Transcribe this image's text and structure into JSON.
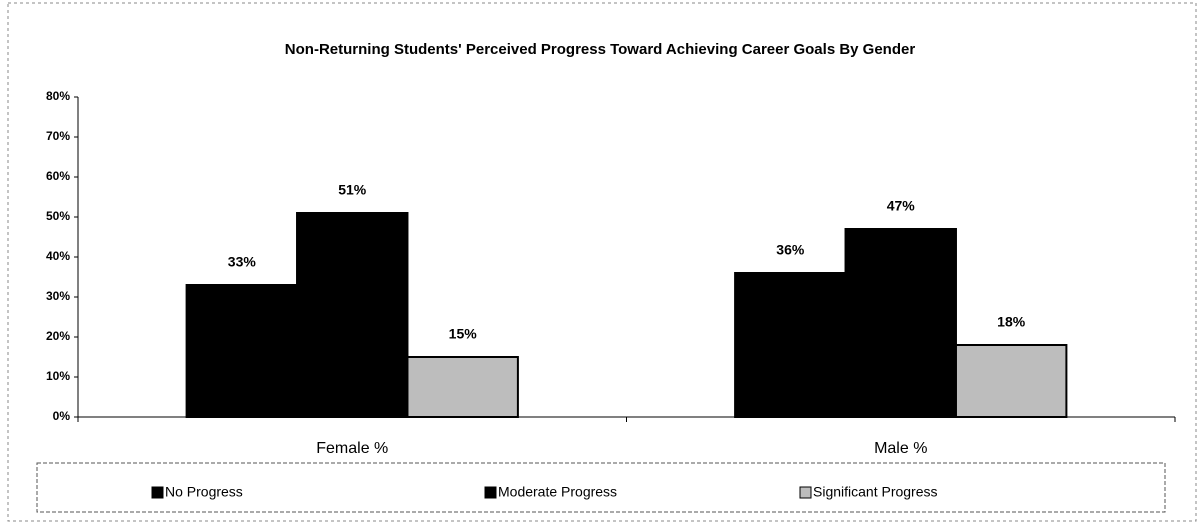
{
  "chart_data": {
    "type": "bar",
    "title": "Non-Returning Students' Perceived Progress Toward Achieving Career Goals By Gender",
    "categories": [
      "Female %",
      "Male %"
    ],
    "series": [
      {
        "name": "No Progress",
        "color": "#000000",
        "values": [
          33,
          36
        ],
        "value_labels": [
          "33%",
          "36%"
        ]
      },
      {
        "name": "Moderate Progress",
        "color": "#000000",
        "values": [
          51,
          47
        ],
        "value_labels": [
          "51%",
          "47%"
        ]
      },
      {
        "name": "Significant Progress",
        "color": "#bdbdbd",
        "values": [
          15,
          18
        ],
        "value_labels": [
          "15%",
          "18%"
        ]
      }
    ],
    "ylim": [
      0,
      80
    ],
    "yticks": [
      {
        "value": 0,
        "label": "0%"
      },
      {
        "value": 10,
        "label": "10%"
      },
      {
        "value": 20,
        "label": "20%"
      },
      {
        "value": 30,
        "label": "30%"
      },
      {
        "value": 40,
        "label": "40%"
      },
      {
        "value": 50,
        "label": "50%"
      },
      {
        "value": 60,
        "label": "60%"
      },
      {
        "value": 70,
        "label": "70%"
      },
      {
        "value": 80,
        "label": "80%"
      }
    ],
    "grid": false,
    "legend": "bottom"
  }
}
